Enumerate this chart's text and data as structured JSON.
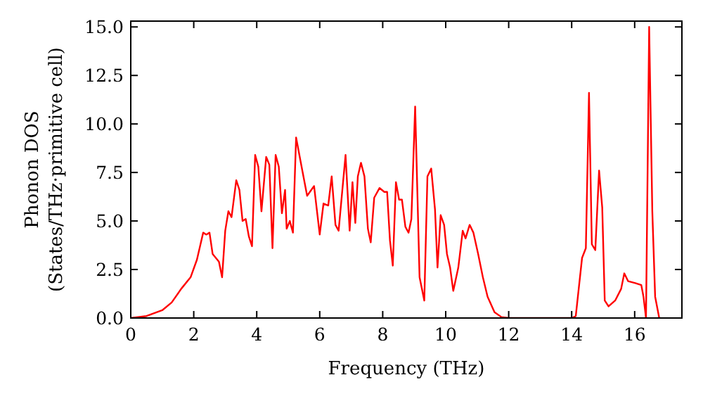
{
  "chart_data": {
    "type": "line",
    "xlabel": "Frequency (THz)",
    "ylabel": "Phonon DOS\n(States/THz·primitive cell)",
    "xlim": [
      0,
      17.5
    ],
    "ylim": [
      0,
      15.3
    ],
    "xticks": [
      0,
      2,
      4,
      6,
      8,
      10,
      12,
      14,
      16
    ],
    "yticks": [
      {
        "value": 0,
        "label": "0.0"
      },
      {
        "value": 2.5,
        "label": "2.5"
      },
      {
        "value": 5,
        "label": "5.0"
      },
      {
        "value": 7.5,
        "label": "7.5"
      },
      {
        "value": 10,
        "label": "10.0"
      },
      {
        "value": 12.5,
        "label": "12.5"
      },
      {
        "value": 15,
        "label": "15.0"
      }
    ],
    "grid": false,
    "marker": "none",
    "line_style": "solid",
    "series": [
      {
        "color": "#ff0000",
        "x": [
          0,
          0.5,
          1,
          1.3,
          1.6,
          1.9,
          2.1,
          2.2,
          2.3,
          2.4,
          2.5,
          2.6,
          2.8,
          2.9,
          3.0,
          3.1,
          3.2,
          3.35,
          3.45,
          3.55,
          3.65,
          3.75,
          3.85,
          3.95,
          4.05,
          4.15,
          4.3,
          4.4,
          4.5,
          4.6,
          4.7,
          4.8,
          4.9,
          4.95,
          5.05,
          5.15,
          5.25,
          5.4,
          5.6,
          5.82,
          6.0,
          6.12,
          6.27,
          6.38,
          6.5,
          6.6,
          6.82,
          6.95,
          7.04,
          7.13,
          7.21,
          7.31,
          7.42,
          7.53,
          7.62,
          7.73,
          7.9,
          8.05,
          8.14,
          8.23,
          8.32,
          8.42,
          8.52,
          8.61,
          8.72,
          8.82,
          8.91,
          9.03,
          9.17,
          9.32,
          9.42,
          9.54,
          9.66,
          9.74,
          9.84,
          9.95,
          10.04,
          10.14,
          10.24,
          10.4,
          10.54,
          10.63,
          10.76,
          10.88,
          11.03,
          11.18,
          11.33,
          11.55,
          11.77,
          12,
          14.0,
          14.13,
          14.33,
          14.45,
          14.55,
          14.64,
          14.75,
          14.87,
          14.97,
          15.05,
          15.17,
          15.38,
          15.57,
          15.67,
          15.79,
          16.02,
          16.21,
          16.28,
          16.36,
          16.46,
          16.56,
          16.65,
          16.78
        ],
        "values": [
          0,
          0.1,
          0.4,
          0.8,
          1.5,
          2.1,
          3.0,
          3.7,
          4.4,
          4.3,
          4.4,
          3.3,
          2.9,
          2.1,
          4.5,
          5.5,
          5.2,
          7.1,
          6.6,
          5.0,
          5.1,
          4.2,
          3.7,
          8.4,
          7.8,
          5.5,
          8.3,
          7.9,
          3.6,
          8.4,
          7.8,
          5.4,
          6.6,
          4.6,
          5.0,
          4.4,
          9.3,
          8.0,
          6.3,
          6.8,
          4.3,
          5.9,
          5.8,
          7.3,
          4.8,
          4.5,
          8.4,
          4.5,
          7.0,
          4.9,
          7.3,
          8.0,
          7.3,
          4.6,
          3.9,
          6.2,
          6.7,
          6.5,
          6.5,
          4.0,
          2.7,
          7.0,
          6.1,
          6.1,
          4.7,
          4.4,
          5.1,
          10.9,
          2.1,
          0.9,
          7.3,
          7.7,
          5.6,
          2.6,
          5.3,
          4.8,
          3.3,
          2.6,
          1.4,
          2.6,
          4.5,
          4.1,
          4.8,
          4.4,
          3.3,
          2.1,
          1.1,
          0.3,
          0.05,
          0,
          0,
          0.1,
          3.1,
          3.6,
          11.6,
          3.8,
          3.5,
          7.6,
          5.7,
          0.9,
          0.6,
          0.9,
          1.5,
          2.3,
          1.9,
          1.8,
          1.7,
          1.1,
          0,
          15.0,
          5.5,
          1.1,
          0
        ]
      }
    ]
  }
}
